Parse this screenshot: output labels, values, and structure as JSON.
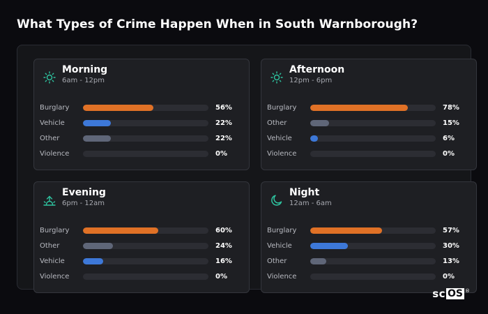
{
  "title": "What Types of Crime Happen When in South Warnborough?",
  "colors": {
    "burglary": "#e07126",
    "vehicle": "#3d78d8",
    "other": "#5f6678",
    "violence": "#5f6678",
    "icon": "#2ec4a0"
  },
  "cards": [
    {
      "name": "Morning",
      "time": "6am - 12pm",
      "icon": "sun-icon",
      "rows": [
        {
          "label": "Burglary",
          "pct": "56%",
          "value": 56,
          "type": "burglary"
        },
        {
          "label": "Vehicle",
          "pct": "22%",
          "value": 22,
          "type": "vehicle"
        },
        {
          "label": "Other",
          "pct": "22%",
          "value": 22,
          "type": "other"
        },
        {
          "label": "Violence",
          "pct": "0%",
          "value": 0,
          "type": "violence"
        }
      ]
    },
    {
      "name": "Afternoon",
      "time": "12pm - 6pm",
      "icon": "sun-icon",
      "rows": [
        {
          "label": "Burglary",
          "pct": "78%",
          "value": 78,
          "type": "burglary"
        },
        {
          "label": "Other",
          "pct": "15%",
          "value": 15,
          "type": "other"
        },
        {
          "label": "Vehicle",
          "pct": "6%",
          "value": 6,
          "type": "vehicle"
        },
        {
          "label": "Violence",
          "pct": "0%",
          "value": 0,
          "type": "violence"
        }
      ]
    },
    {
      "name": "Evening",
      "time": "6pm - 12am",
      "icon": "sunset-icon",
      "rows": [
        {
          "label": "Burglary",
          "pct": "60%",
          "value": 60,
          "type": "burglary"
        },
        {
          "label": "Other",
          "pct": "24%",
          "value": 24,
          "type": "other"
        },
        {
          "label": "Vehicle",
          "pct": "16%",
          "value": 16,
          "type": "vehicle"
        },
        {
          "label": "Violence",
          "pct": "0%",
          "value": 0,
          "type": "violence"
        }
      ]
    },
    {
      "name": "Night",
      "time": "12am - 6am",
      "icon": "moon-icon",
      "rows": [
        {
          "label": "Burglary",
          "pct": "57%",
          "value": 57,
          "type": "burglary"
        },
        {
          "label": "Vehicle",
          "pct": "30%",
          "value": 30,
          "type": "vehicle"
        },
        {
          "label": "Other",
          "pct": "13%",
          "value": 13,
          "type": "other"
        },
        {
          "label": "Violence",
          "pct": "0%",
          "value": 0,
          "type": "violence"
        }
      ]
    }
  ],
  "logo": {
    "left": "sc",
    "boxed": "OS",
    "mark": "®"
  }
}
